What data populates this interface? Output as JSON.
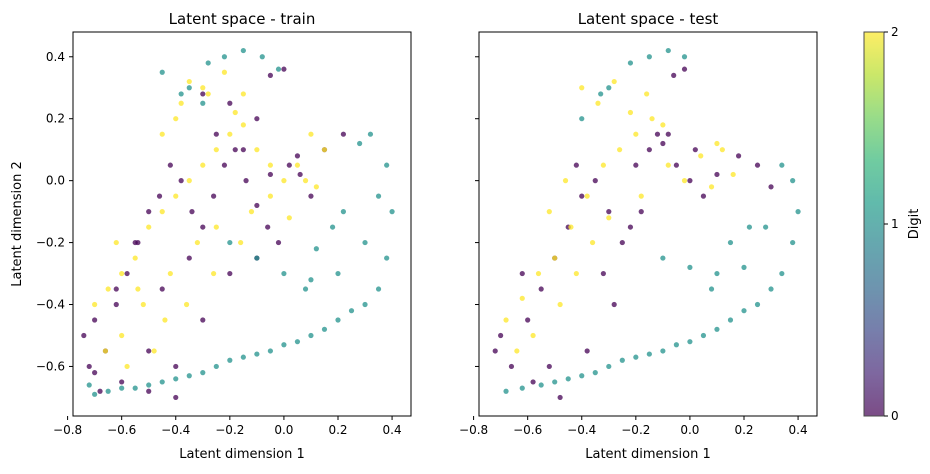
{
  "chart_data": [
    {
      "type": "scatter",
      "title": "Latent space - train",
      "xlabel": "Latent dimension 1",
      "ylabel": "Latent dimension 2",
      "xlim": [
        -0.78,
        0.47
      ],
      "ylim": [
        -0.76,
        0.48
      ],
      "xticks": [
        -0.8,
        -0.6,
        -0.4,
        -0.2,
        0.0,
        0.2,
        0.4
      ],
      "xtick_labels": [
        "−0.8",
        "−0.6",
        "−0.4",
        "−0.2",
        "0.0",
        "0.2",
        "0.4"
      ],
      "yticks": [
        -0.6,
        -0.4,
        -0.2,
        0.0,
        0.2,
        0.4
      ],
      "ytick_labels": [
        "−0.6",
        "−0.4",
        "−0.2",
        "0.0",
        "0.2",
        "0.4"
      ],
      "grid": false,
      "series": [
        {
          "color": "#440154",
          "x": [
            -0.74,
            -0.7,
            -0.66,
            -0.62,
            -0.58,
            -0.54,
            -0.5,
            -0.46,
            -0.42,
            -0.38,
            -0.34,
            -0.3,
            -0.26,
            -0.22,
            -0.18,
            -0.14,
            -0.1,
            -0.06,
            -0.02,
            0.02,
            0.06,
            0.1,
            -0.6,
            -0.5,
            -0.4,
            -0.3,
            -0.2,
            -0.1,
            -0.7,
            -0.55,
            -0.45,
            -0.35,
            -0.25,
            -0.15,
            -0.05,
            0.05,
            0.15,
            0.22,
            0.0,
            -0.05,
            -0.1,
            -0.2,
            -0.3,
            -0.4,
            -0.5,
            -0.62,
            -0.68,
            -0.72
          ],
          "y": [
            -0.5,
            -0.62,
            -0.55,
            -0.4,
            -0.3,
            -0.2,
            -0.1,
            -0.05,
            0.05,
            0.0,
            -0.1,
            -0.15,
            -0.05,
            0.05,
            0.1,
            0.0,
            -0.08,
            -0.15,
            -0.2,
            0.05,
            0.02,
            -0.05,
            -0.65,
            -0.68,
            -0.7,
            -0.45,
            -0.3,
            -0.25,
            -0.45,
            -0.2,
            -0.35,
            -0.25,
            0.15,
            0.1,
            0.02,
            0.08,
            0.1,
            0.15,
            0.36,
            0.34,
            0.2,
            0.25,
            0.28,
            -0.6,
            -0.55,
            -0.35,
            -0.68,
            -0.6
          ]
        },
        {
          "color": "#21918c",
          "x": [
            -0.2,
            -0.1,
            0.0,
            0.1,
            0.2,
            0.3,
            0.35,
            0.38,
            0.4,
            0.38,
            0.35,
            0.3,
            0.25,
            0.2,
            0.15,
            0.1,
            0.05,
            0.0,
            -0.05,
            -0.1,
            -0.15,
            -0.2,
            -0.25,
            -0.3,
            -0.35,
            -0.4,
            -0.45,
            -0.5,
            -0.55,
            -0.6,
            -0.65,
            -0.7,
            -0.72,
            0.32,
            0.28,
            0.22,
            0.18,
            0.12,
            0.08,
            -0.35,
            -0.28,
            -0.22,
            -0.15,
            -0.08,
            -0.02,
            -0.45,
            -0.38,
            -0.3
          ],
          "y": [
            -0.2,
            -0.25,
            -0.3,
            -0.32,
            -0.3,
            -0.2,
            -0.05,
            0.05,
            -0.1,
            -0.25,
            -0.35,
            -0.4,
            -0.42,
            -0.45,
            -0.48,
            -0.5,
            -0.52,
            -0.53,
            -0.55,
            -0.56,
            -0.57,
            -0.58,
            -0.6,
            -0.62,
            -0.63,
            -0.64,
            -0.65,
            -0.66,
            -0.67,
            -0.67,
            -0.68,
            -0.69,
            -0.66,
            0.15,
            0.12,
            -0.1,
            -0.15,
            -0.22,
            -0.35,
            0.3,
            0.38,
            0.4,
            0.42,
            0.4,
            0.36,
            0.35,
            0.28,
            0.25
          ]
        },
        {
          "color": "#fde725",
          "x": [
            -0.7,
            -0.65,
            -0.6,
            -0.55,
            -0.5,
            -0.45,
            -0.4,
            -0.35,
            -0.3,
            -0.25,
            -0.2,
            -0.15,
            -0.1,
            -0.05,
            0.0,
            0.05,
            0.1,
            0.15,
            -0.45,
            -0.38,
            -0.3,
            -0.22,
            -0.15,
            -0.6,
            -0.52,
            -0.42,
            -0.32,
            -0.25,
            -0.12,
            -0.05,
            0.08,
            -0.4,
            -0.35,
            -0.28,
            -0.18,
            -0.48,
            -0.58,
            -0.66,
            -0.62,
            -0.54,
            -0.44,
            -0.36,
            -0.26,
            -0.16,
            0.02,
            0.12
          ],
          "y": [
            -0.4,
            -0.35,
            -0.3,
            -0.25,
            -0.15,
            -0.1,
            -0.05,
            0.0,
            0.05,
            0.1,
            0.15,
            0.18,
            0.1,
            0.05,
            0.0,
            0.05,
            0.15,
            0.1,
            0.15,
            0.25,
            0.3,
            0.35,
            0.28,
            -0.5,
            -0.4,
            -0.3,
            -0.2,
            -0.15,
            -0.1,
            -0.05,
            0.0,
            0.2,
            0.32,
            0.28,
            0.22,
            -0.55,
            -0.6,
            -0.55,
            -0.2,
            -0.35,
            -0.45,
            -0.4,
            -0.3,
            -0.2,
            -0.12,
            -0.02
          ]
        }
      ]
    },
    {
      "type": "scatter",
      "title": "Latent space - test",
      "xlabel": "Latent dimension 1",
      "ylabel": "",
      "xlim": [
        -0.78,
        0.47
      ],
      "ylim": [
        -0.76,
        0.48
      ],
      "xticks": [
        -0.8,
        -0.6,
        -0.4,
        -0.2,
        0.0,
        0.2,
        0.4
      ],
      "xtick_labels": [
        "−0.8",
        "−0.6",
        "−0.4",
        "−0.2",
        "0.0",
        "0.2",
        "0.4"
      ],
      "yticks": [
        -0.6,
        -0.4,
        -0.2,
        0.0,
        0.2,
        0.4
      ],
      "ytick_labels": [
        "",
        "",
        "",
        "",
        "",
        ""
      ],
      "grid": false,
      "series": [
        {
          "color": "#440154",
          "x": [
            -0.72,
            -0.66,
            -0.6,
            -0.55,
            -0.5,
            -0.45,
            -0.4,
            -0.35,
            -0.3,
            -0.25,
            -0.2,
            -0.15,
            -0.1,
            -0.05,
            0.0,
            0.05,
            0.1,
            -0.58,
            -0.48,
            -0.38,
            -0.28,
            -0.18,
            -0.08,
            0.02,
            -0.62,
            -0.42,
            -0.32,
            -0.22,
            0.18,
            0.25,
            0.3,
            -0.02,
            -0.06,
            -0.12,
            -0.7,
            -0.52
          ],
          "y": [
            -0.55,
            -0.6,
            -0.45,
            -0.35,
            -0.25,
            -0.15,
            -0.05,
            0.0,
            -0.1,
            -0.2,
            0.05,
            0.1,
            0.12,
            0.05,
            0.0,
            -0.05,
            0.02,
            -0.65,
            -0.7,
            -0.55,
            -0.4,
            -0.1,
            0.15,
            0.1,
            -0.3,
            0.05,
            -0.3,
            -0.15,
            0.08,
            0.05,
            -0.02,
            0.36,
            0.34,
            0.15,
            -0.5,
            -0.6
          ]
        },
        {
          "color": "#21918c",
          "x": [
            -0.1,
            0.0,
            0.1,
            0.2,
            0.28,
            0.34,
            0.38,
            0.4,
            0.38,
            0.34,
            0.3,
            0.25,
            0.2,
            0.15,
            0.1,
            0.05,
            0.0,
            -0.05,
            -0.1,
            -0.15,
            -0.2,
            -0.25,
            -0.3,
            -0.35,
            -0.4,
            -0.45,
            -0.5,
            -0.55,
            -0.62,
            -0.68,
            0.22,
            0.15,
            0.08,
            -0.3,
            -0.22,
            -0.15,
            -0.08,
            -0.02,
            -0.4,
            -0.33
          ],
          "y": [
            -0.25,
            -0.28,
            -0.3,
            -0.28,
            -0.15,
            0.05,
            0.0,
            -0.1,
            -0.2,
            -0.3,
            -0.35,
            -0.4,
            -0.42,
            -0.45,
            -0.48,
            -0.5,
            -0.52,
            -0.53,
            -0.55,
            -0.56,
            -0.57,
            -0.58,
            -0.6,
            -0.62,
            -0.63,
            -0.64,
            -0.65,
            -0.66,
            -0.67,
            -0.68,
            -0.15,
            -0.2,
            -0.35,
            0.3,
            0.38,
            0.4,
            0.42,
            0.4,
            0.2,
            0.28
          ]
        },
        {
          "color": "#fde725",
          "x": [
            -0.68,
            -0.62,
            -0.56,
            -0.5,
            -0.44,
            -0.38,
            -0.32,
            -0.26,
            -0.2,
            -0.14,
            -0.08,
            -0.02,
            0.04,
            0.1,
            0.16,
            -0.4,
            -0.34,
            -0.28,
            -0.22,
            -0.16,
            -0.1,
            -0.58,
            -0.48,
            -0.42,
            -0.36,
            -0.3,
            -0.18,
            0.08,
            0.12,
            -0.52,
            -0.46,
            -0.64
          ],
          "y": [
            -0.45,
            -0.38,
            -0.3,
            -0.25,
            -0.15,
            -0.05,
            0.05,
            0.1,
            0.15,
            0.2,
            0.05,
            0.0,
            0.08,
            0.12,
            0.02,
            0.3,
            0.25,
            0.32,
            0.22,
            0.28,
            0.18,
            -0.5,
            -0.4,
            -0.3,
            -0.2,
            -0.12,
            -0.05,
            -0.02,
            0.1,
            -0.1,
            0.0,
            -0.55
          ]
        }
      ]
    }
  ],
  "colorbar": {
    "label": "Digit",
    "ticks": [
      {
        "value": 0,
        "label": "0"
      },
      {
        "value": 1,
        "label": "1"
      },
      {
        "value": 2,
        "label": "2"
      }
    ],
    "colors": [
      "#440154",
      "#482878",
      "#3e4989",
      "#31688e",
      "#26828e",
      "#1f9e89",
      "#35b779",
      "#6ece58",
      "#b5de2b",
      "#fde725"
    ]
  }
}
